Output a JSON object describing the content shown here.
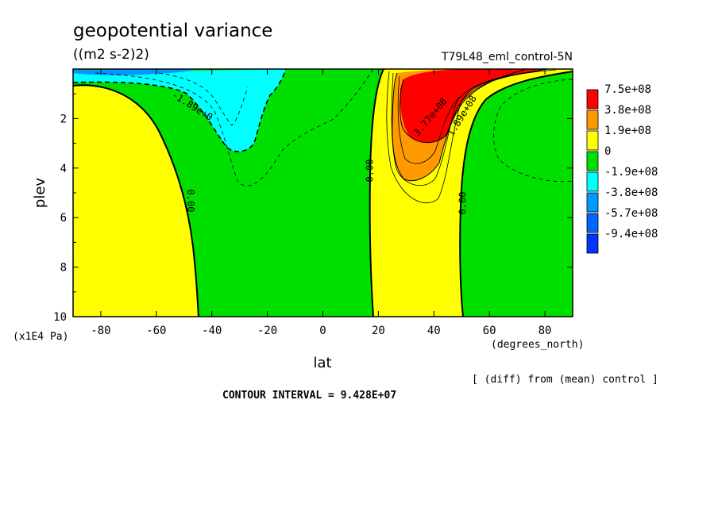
{
  "chart_data": {
    "type": "heatmap",
    "title": "geopotential variance",
    "units": "((m2 s-2)2)",
    "run_label": "T79L48_eml_control-5N",
    "xlabel": "lat",
    "x_units": "(degrees_north)",
    "ylabel": "plev",
    "y_units": "(x1E4 Pa)",
    "x_ticks": [
      "-80",
      "-60",
      "-40",
      "-20",
      "0",
      "20",
      "40",
      "60",
      "80"
    ],
    "y_ticks": [
      "2",
      "4",
      "6",
      "8",
      "10"
    ],
    "xlim": [
      -90,
      90
    ],
    "ylim": [
      10,
      0
    ],
    "diff_note": "[ (diff) from (mean) control ]",
    "contour_interval": "CONTOUR INTERVAL = 9.428E+07",
    "legend": [
      {
        "label": "7.5e+08",
        "color": "#ff0000"
      },
      {
        "label": "3.8e+08",
        "color": "#ff9900"
      },
      {
        "label": "1.9e+08",
        "color": "#ffff00"
      },
      {
        "label": "0",
        "color": "#00e000"
      },
      {
        "label": "-1.9e+08",
        "color": "#00ffff"
      },
      {
        "label": "-3.8e+08",
        "color": "#0099ff"
      },
      {
        "label": "-5.7e+08",
        "color": "#0066ff"
      },
      {
        "label": "-9.4e+08",
        "color": "#0033ff"
      }
    ],
    "contour_labels": [
      "0.00",
      "0.00",
      "0.00",
      "-1.89e+0",
      "1.89e+08",
      "3.77e+08"
    ],
    "regions": [
      {
        "range": "0 to 1.9e+08",
        "area": "lat -90 to -45, plev 1 to 10"
      },
      {
        "range": "0 to 1.9e+08",
        "area": "lat 18 to 50, plev 0.2 to 10"
      },
      {
        "range": "1.9e+08 to 3.8e+08",
        "area": "lat 28 to 45, plev 1 to 4.3"
      },
      {
        "range": "3.8e+08 to 7.5e+08",
        "area": "lat 30 to 43, plev 0.5 to 3.5"
      },
      {
        "range": "> 7.5e+08",
        "area": "lat 30 to 55, plev 0 to 2.8"
      },
      {
        "range": "-1.9e+08 to 0",
        "area": "lat -90 to 20 and 50 to 90, upper and middle levels"
      },
      {
        "range": "-3.8e+08 to -1.9e+08",
        "area": "lat -65 to -15, plev 0.2 to 3.5"
      }
    ]
  }
}
